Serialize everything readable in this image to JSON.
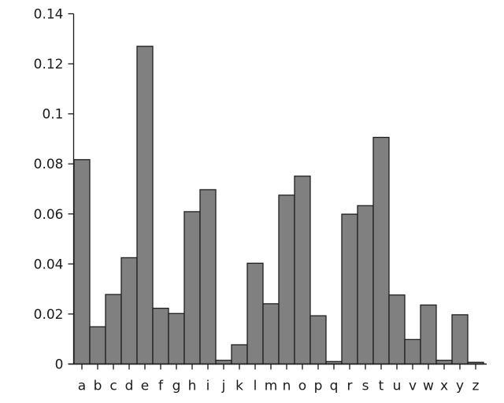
{
  "chart_data": {
    "type": "bar",
    "title": "",
    "xlabel": "",
    "ylabel": "",
    "categories": [
      "a",
      "b",
      "c",
      "d",
      "e",
      "f",
      "g",
      "h",
      "i",
      "j",
      "k",
      "l",
      "m",
      "n",
      "o",
      "p",
      "q",
      "r",
      "s",
      "t",
      "u",
      "v",
      "w",
      "x",
      "y",
      "z"
    ],
    "values": [
      0.0817,
      0.0149,
      0.0278,
      0.0425,
      0.127,
      0.0223,
      0.0202,
      0.0609,
      0.0697,
      0.0015,
      0.0077,
      0.0403,
      0.0241,
      0.0675,
      0.0751,
      0.0193,
      0.001,
      0.0599,
      0.0633,
      0.0906,
      0.0276,
      0.0098,
      0.0236,
      0.0015,
      0.0197,
      0.0007
    ],
    "ylim": [
      0,
      0.14
    ],
    "yticks": [
      0,
      0.02,
      0.04,
      0.06,
      0.08,
      0.1,
      0.12,
      0.14
    ],
    "ytick_labels": [
      "0",
      "0.02",
      "0.04",
      "0.06",
      "0.08",
      "0.1",
      "0.12",
      "0.14"
    ],
    "grid": false,
    "legend": "none",
    "bar_gap": 0,
    "colors": {
      "bar_fill": "#808080",
      "bar_stroke": "#1f1f1f",
      "axis": "#1a1a1a",
      "text": "#1a1a1a",
      "background": "#ffffff"
    }
  }
}
